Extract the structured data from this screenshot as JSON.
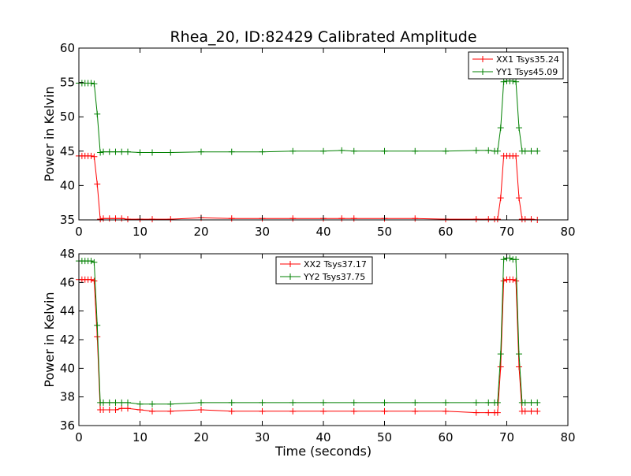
{
  "chart_data": {
    "title": "Rhea_20, ID:82429 Calibrated Amplitude",
    "xlabel": "Time (seconds)",
    "charts": [
      {
        "type": "line",
        "ylabel": "Power in Kelvin",
        "xlim": [
          0,
          80
        ],
        "ylim": [
          35,
          60
        ],
        "xticks": [
          0,
          10,
          20,
          30,
          40,
          50,
          60,
          70,
          80
        ],
        "yticks": [
          35,
          40,
          45,
          50,
          55,
          60
        ],
        "legend_position": "top-right",
        "grid": false,
        "x": [
          0,
          0.5,
          1,
          1.5,
          2,
          2.5,
          3,
          3.5,
          4,
          5,
          6,
          7,
          8,
          10,
          12,
          15,
          20,
          25,
          30,
          35,
          40,
          43,
          45,
          50,
          55,
          60,
          65,
          67,
          68,
          68.5,
          69,
          69.5,
          70,
          70.5,
          71,
          71.5,
          72,
          72.5,
          73,
          74,
          75
        ],
        "series": [
          {
            "name": "XX1 Tsys35.24",
            "color": "#ff0000",
            "values": [
              44.3,
              44.3,
              44.3,
              44.3,
              44.3,
              44.2,
              40.2,
              35.1,
              35.2,
              35.2,
              35.2,
              35.2,
              35.1,
              35.1,
              35.1,
              35.1,
              35.3,
              35.2,
              35.2,
              35.2,
              35.2,
              35.2,
              35.2,
              35.2,
              35.2,
              35.1,
              35.1,
              35.1,
              35.1,
              35.1,
              38.2,
              44.3,
              44.3,
              44.3,
              44.3,
              44.3,
              38.2,
              35.1,
              35.1,
              35.1,
              35.0
            ]
          },
          {
            "name": "YY1 Tsys45.09",
            "color": "#008000",
            "values": [
              54.9,
              54.9,
              54.9,
              54.9,
              54.9,
              54.8,
              50.4,
              44.8,
              44.9,
              44.9,
              44.9,
              44.9,
              44.9,
              44.8,
              44.8,
              44.8,
              44.9,
              44.9,
              44.9,
              45.0,
              45.0,
              45.1,
              45.0,
              45.0,
              45.0,
              45.0,
              45.1,
              45.1,
              45.0,
              45.0,
              48.4,
              55.1,
              55.2,
              55.2,
              55.2,
              55.1,
              48.4,
              45.0,
              45.0,
              45.0,
              45.0
            ]
          }
        ]
      },
      {
        "type": "line",
        "ylabel": "Power in Kelvin",
        "xlim": [
          0,
          80
        ],
        "ylim": [
          36,
          48
        ],
        "xticks": [
          0,
          10,
          20,
          30,
          40,
          50,
          60,
          70,
          80
        ],
        "yticks": [
          36,
          38,
          40,
          42,
          44,
          46,
          48
        ],
        "legend_position": "top-center",
        "grid": false,
        "x": [
          0,
          0.5,
          1,
          1.5,
          2,
          2.5,
          3,
          3.5,
          4,
          5,
          6,
          7,
          8,
          10,
          12,
          15,
          20,
          25,
          30,
          35,
          40,
          45,
          50,
          55,
          60,
          65,
          67,
          68,
          68.5,
          69,
          69.5,
          70,
          70.5,
          71,
          71.5,
          72,
          72.5,
          73,
          74,
          75
        ],
        "series": [
          {
            "name": "XX2 Tsys37.17",
            "color": "#ff0000",
            "values": [
              46.2,
              46.2,
              46.2,
              46.2,
              46.2,
              46.1,
              42.2,
              37.1,
              37.1,
              37.1,
              37.1,
              37.2,
              37.2,
              37.1,
              37.0,
              37.0,
              37.1,
              37.0,
              37.0,
              37.0,
              37.0,
              37.0,
              37.0,
              37.0,
              37.0,
              36.9,
              36.9,
              36.9,
              36.9,
              40.1,
              46.1,
              46.2,
              46.2,
              46.2,
              46.1,
              40.1,
              37.0,
              37.0,
              37.0,
              37.0
            ]
          },
          {
            "name": "YY2 Tsys37.75",
            "color": "#008000",
            "values": [
              47.5,
              47.5,
              47.5,
              47.5,
              47.5,
              47.4,
              43.0,
              37.6,
              37.6,
              37.6,
              37.6,
              37.6,
              37.6,
              37.5,
              37.5,
              37.5,
              37.6,
              37.6,
              37.6,
              37.6,
              37.6,
              37.6,
              37.6,
              37.6,
              37.6,
              37.6,
              37.6,
              37.6,
              37.6,
              41.0,
              47.6,
              47.7,
              47.7,
              47.6,
              47.6,
              41.0,
              37.6,
              37.6,
              37.6,
              37.6
            ]
          }
        ]
      }
    ]
  }
}
